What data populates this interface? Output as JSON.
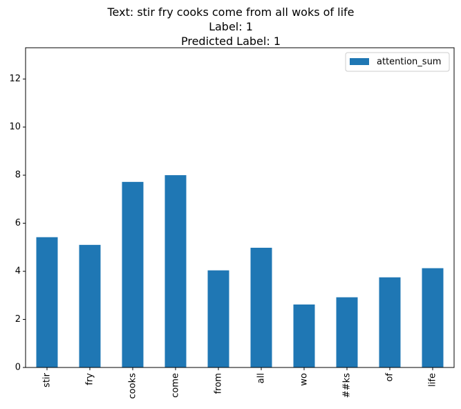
{
  "chart_data": {
    "type": "bar",
    "title_lines": [
      "Text: stir fry cooks come from all woks of life",
      "Label: 1",
      "Predicted Label: 1"
    ],
    "categories": [
      "stir",
      "fry",
      "cooks",
      "come",
      "from",
      "all",
      "wo",
      "##ks",
      "of",
      "life"
    ],
    "series": [
      {
        "name": "attention_sum",
        "values": [
          5.42,
          5.1,
          7.72,
          8.0,
          4.04,
          4.98,
          2.62,
          2.92,
          3.75,
          4.13
        ],
        "color": "#1f77b4"
      }
    ],
    "ylim": [
      0,
      13.3
    ],
    "yticks": [
      0,
      2,
      4,
      6,
      8,
      10,
      12
    ],
    "legend_position": "top-right",
    "grid": false
  }
}
